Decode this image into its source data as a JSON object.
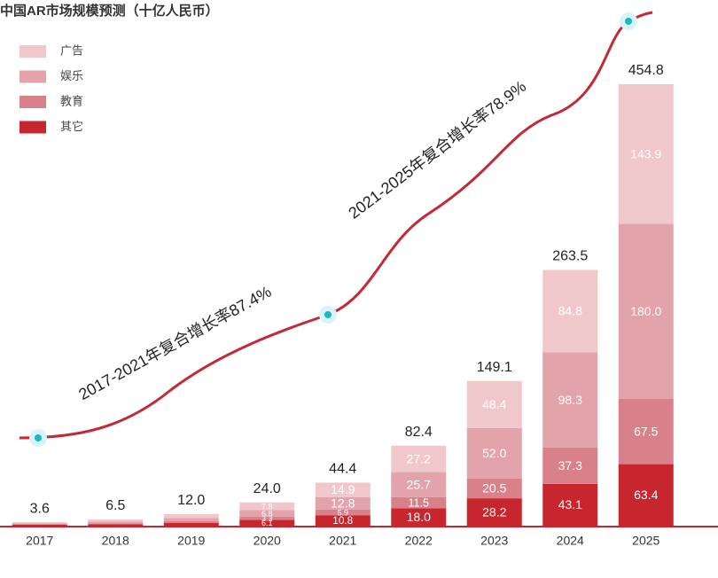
{
  "chart_data": {
    "type": "stacked_bar",
    "title": "中国AR市场规模预测（十亿人民币）",
    "categories": [
      "2017",
      "2018",
      "2019",
      "2020",
      "2021",
      "2022",
      "2023",
      "2024",
      "2025"
    ],
    "series": [
      {
        "name": "其它",
        "color": "#c8262f",
        "values": [
          0.9,
          1.6,
          3.0,
          6.1,
          10.8,
          18.0,
          28.2,
          43.1,
          63.4
        ],
        "value_labels": [
          null,
          null,
          null,
          "6.1",
          "10.8",
          "18.0",
          "28.2",
          "43.1",
          "63.4"
        ]
      },
      {
        "name": "教育",
        "color": "#d9818a",
        "values": [
          0.5,
          0.9,
          1.6,
          3.3,
          5.9,
          11.5,
          20.5,
          37.3,
          67.5
        ],
        "value_labels": [
          null,
          null,
          null,
          "3.3",
          "5.9",
          "11.5",
          "20.5",
          "37.3",
          "67.5"
        ]
      },
      {
        "name": "娱乐",
        "color": "#e3a3aa",
        "values": [
          1.0,
          1.8,
          3.4,
          6.8,
          12.8,
          25.7,
          52.0,
          98.3,
          180.0
        ],
        "value_labels": [
          null,
          null,
          null,
          "6.8",
          "12.8",
          "25.7",
          "52.0",
          "98.3",
          "180.0"
        ]
      },
      {
        "name": "广告",
        "color": "#f0c8cc",
        "values": [
          1.2,
          2.2,
          4.0,
          7.8,
          14.9,
          27.2,
          48.4,
          84.8,
          143.9
        ],
        "value_labels": [
          null,
          null,
          null,
          "7.8",
          "14.9",
          "27.2",
          "48.4",
          "84.8",
          "143.9"
        ]
      }
    ],
    "totals": [
      3.6,
      6.5,
      12.0,
      24.0,
      44.4,
      82.4,
      149.1,
      263.5,
      454.8
    ],
    "total_labels": [
      "3.6",
      "6.5",
      "12.0",
      "24.0",
      "44.4",
      "82.4",
      "149.1",
      "263.5",
      "454.8"
    ],
    "annotations": [
      "2017-2021年复合增长率87.4%",
      "2021-2025年复合增长率78.9%"
    ]
  }
}
